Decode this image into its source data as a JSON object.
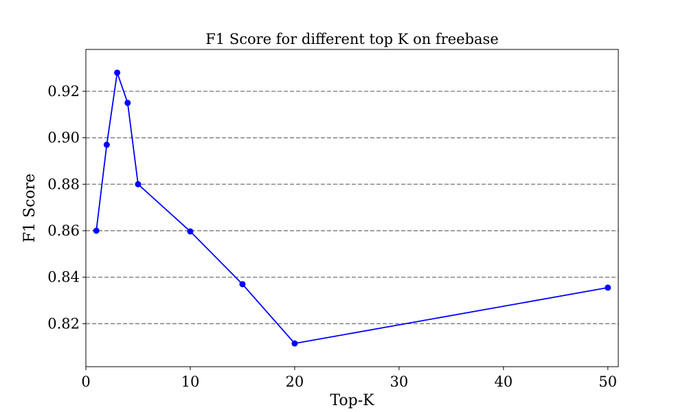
{
  "chart_data": {
    "type": "line",
    "title": "F1 Score for different top K on freebase",
    "xlabel": "Top-K",
    "ylabel": "F1 Score",
    "xlim": [
      0,
      51
    ],
    "ylim": [
      0.8015,
      0.938
    ],
    "x_ticks": [
      0,
      10,
      20,
      30,
      40,
      50
    ],
    "x_tick_labels": [
      "0",
      "10",
      "20",
      "30",
      "40",
      "50"
    ],
    "y_ticks": [
      0.82,
      0.84,
      0.86,
      0.88,
      0.9,
      0.92
    ],
    "y_tick_labels": [
      "0.82",
      "0.84",
      "0.86",
      "0.88",
      "0.90",
      "0.92"
    ],
    "grid": {
      "axis": "y",
      "style": "dashed",
      "color": "#808080"
    },
    "series": [
      {
        "color": "#0000ff",
        "marker": "circle",
        "x": [
          1,
          2,
          3,
          4,
          5,
          10,
          15,
          20,
          50
        ],
        "y": [
          0.86,
          0.897,
          0.928,
          0.915,
          0.88,
          0.8597,
          0.837,
          0.8115,
          0.8355
        ]
      }
    ]
  }
}
